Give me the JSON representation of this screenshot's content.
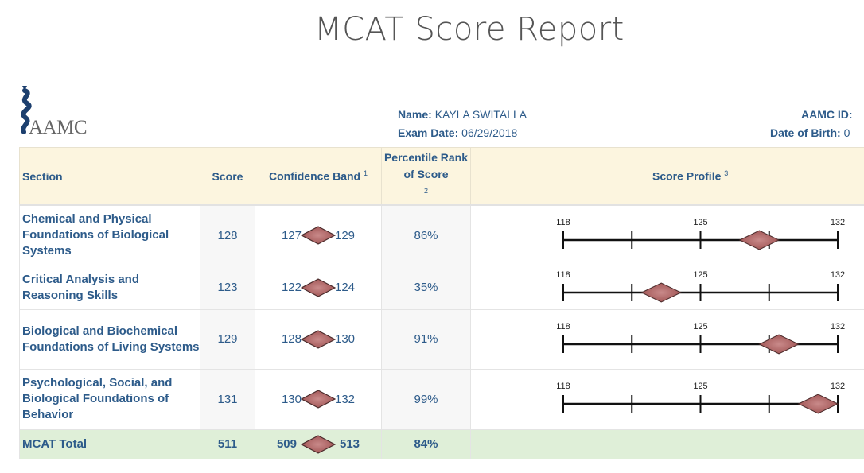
{
  "page_title": "MCAT Score Report",
  "logo_text": "AAMC",
  "candidate": {
    "name_label": "Name:",
    "name": "KAYLA SWITALLA",
    "exam_date_label": "Exam Date:",
    "exam_date": "06/29/2018",
    "aamc_id_label": "AAMC ID:",
    "aamc_id": "",
    "dob_label": "Date of Birth:",
    "dob": "0"
  },
  "table": {
    "headers": {
      "section": "Section",
      "score": "Score",
      "confidence": "Confidence Band",
      "confidence_note": "1",
      "percentile": "Percentile Rank of Score",
      "percentile_note": "2",
      "profile": "Score Profile",
      "profile_note": "3"
    },
    "rows": [
      {
        "section": "Chemical and Physical Foundations of Biological Systems",
        "score": "128",
        "low": "127",
        "high": "129",
        "percentile": "86%"
      },
      {
        "section": "Critical Analysis and Reasoning Skills",
        "score": "123",
        "low": "122",
        "high": "124",
        "percentile": "35%"
      },
      {
        "section": "Biological and Biochemical Foundations of Living Systems",
        "score": "129",
        "low": "128",
        "high": "130",
        "percentile": "91%"
      },
      {
        "section": "Psychological, Social, and Biological Foundations of Behavior",
        "score": "131",
        "low": "130",
        "high": "132",
        "percentile": "99%"
      }
    ],
    "total": {
      "section": "MCAT Total",
      "score": "511",
      "low": "509",
      "high": "513",
      "percentile": "84%"
    }
  },
  "profile_scale": {
    "min": 118,
    "mid": 125,
    "max": 132,
    "tick_labels": [
      "118",
      "125",
      "132"
    ],
    "tick_values": [
      118,
      121.5,
      125,
      128.5,
      132
    ]
  },
  "colors": {
    "text": "#2d5b8a",
    "header_bg": "#fcf5df",
    "total_bg": "#dfefd8",
    "diamond": "#b86e6e"
  }
}
